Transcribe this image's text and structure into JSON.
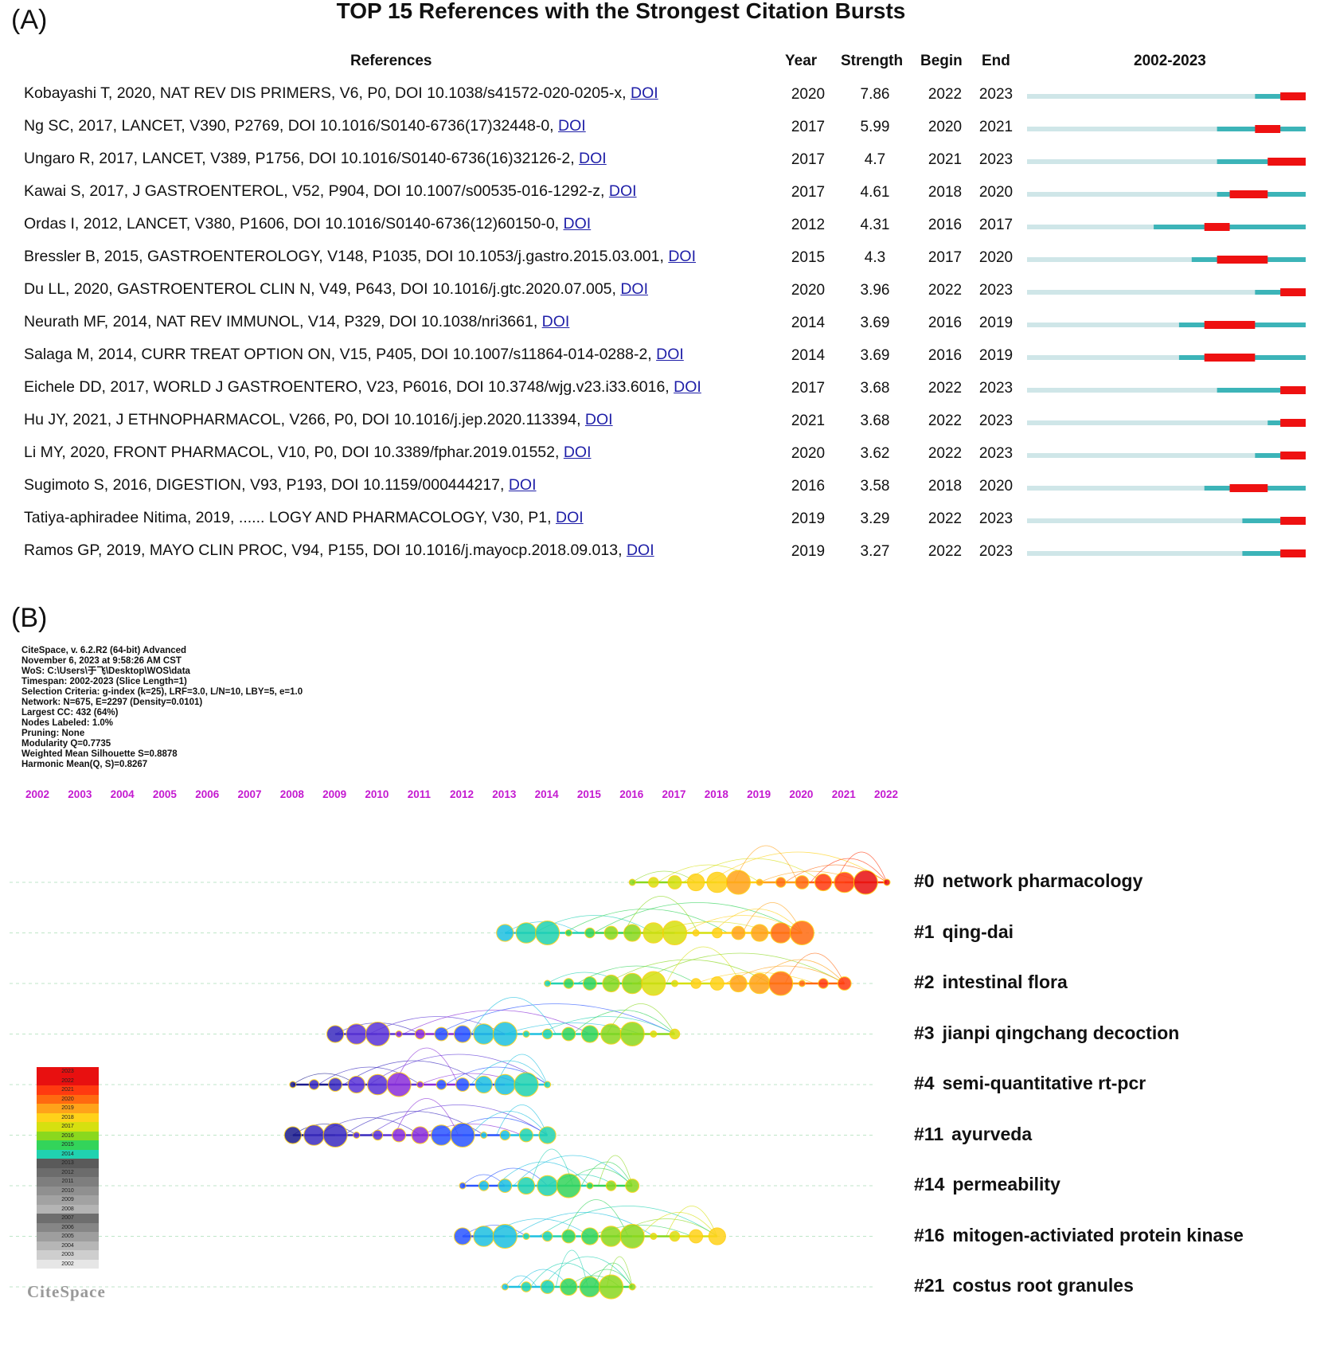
{
  "panel_a_label": "(A)",
  "panel_b_label": "(B)",
  "chart_data": [
    {
      "type": "table",
      "title": "TOP 15 References with the Strongest Citation Bursts",
      "columns": [
        "References",
        "Year",
        "Strength",
        "Begin",
        "End",
        "2002-2023"
      ],
      "timeline_range": [
        2002,
        2023
      ],
      "rows": [
        {
          "ref": "Kobayashi T, 2020, NAT REV DIS PRIMERS, V6, P0, DOI 10.1038/s41572-020-0205-x,",
          "doi": "DOI",
          "year": "2020",
          "strength": "7.86",
          "begin": "2022",
          "end": "2023"
        },
        {
          "ref": "Ng SC, 2017, LANCET, V390, P2769, DOI 10.1016/S0140-6736(17)32448-0,",
          "doi": "DOI",
          "year": "2017",
          "strength": "5.99",
          "begin": "2020",
          "end": "2021"
        },
        {
          "ref": "Ungaro R, 2017, LANCET, V389, P1756, DOI 10.1016/S0140-6736(16)32126-2,",
          "doi": "DOI",
          "year": "2017",
          "strength": "4.7",
          "begin": "2021",
          "end": "2023"
        },
        {
          "ref": "Kawai S, 2017, J GASTROENTEROL, V52, P904, DOI 10.1007/s00535-016-1292-z,",
          "doi": "DOI",
          "year": "2017",
          "strength": "4.61",
          "begin": "2018",
          "end": "2020"
        },
        {
          "ref": "Ordas I, 2012, LANCET, V380, P1606, DOI 10.1016/S0140-6736(12)60150-0,",
          "doi": "DOI",
          "year": "2012",
          "strength": "4.31",
          "begin": "2016",
          "end": "2017"
        },
        {
          "ref": "Bressler B, 2015, GASTROENTEROLOGY, V148, P1035, DOI 10.1053/j.gastro.2015.03.001,",
          "doi": "DOI",
          "year": "2015",
          "strength": "4.3",
          "begin": "2017",
          "end": "2020"
        },
        {
          "ref": "Du LL, 2020, GASTROENTEROL CLIN N, V49, P643, DOI 10.1016/j.gtc.2020.07.005,",
          "doi": "DOI",
          "year": "2020",
          "strength": "3.96",
          "begin": "2022",
          "end": "2023"
        },
        {
          "ref": "Neurath MF, 2014, NAT REV IMMUNOL, V14, P329, DOI 10.1038/nri3661,",
          "doi": "DOI",
          "year": "2014",
          "strength": "3.69",
          "begin": "2016",
          "end": "2019"
        },
        {
          "ref": "Salaga M, 2014, CURR TREAT OPTION ON, V15, P405, DOI 10.1007/s11864-014-0288-2,",
          "doi": "DOI",
          "year": "2014",
          "strength": "3.69",
          "begin": "2016",
          "end": "2019"
        },
        {
          "ref": "Eichele DD, 2017, WORLD J GASTROENTERO, V23, P6016, DOI 10.3748/wjg.v23.i33.6016,",
          "doi": "DOI",
          "year": "2017",
          "strength": "3.68",
          "begin": "2022",
          "end": "2023"
        },
        {
          "ref": "Hu JY, 2021, J ETHNOPHARMACOL, V266, P0, DOI 10.1016/j.jep.2020.113394,",
          "doi": "DOI",
          "year": "2021",
          "strength": "3.68",
          "begin": "2022",
          "end": "2023"
        },
        {
          "ref": "Li MY, 2020, FRONT PHARMACOL, V10, P0, DOI 10.3389/fphar.2019.01552,",
          "doi": "DOI",
          "year": "2020",
          "strength": "3.62",
          "begin": "2022",
          "end": "2023"
        },
        {
          "ref": "Sugimoto S, 2016, DIGESTION, V93, P193, DOI 10.1159/000444217,",
          "doi": "DOI",
          "year": "2016",
          "strength": "3.58",
          "begin": "2018",
          "end": "2020"
        },
        {
          "ref": "Tatiya-aphiradee Nitima, 2019, ...... LOGY AND PHARMACOLOGY, V30, P1,",
          "doi": "DOI",
          "year": "2019",
          "strength": "3.29",
          "begin": "2022",
          "end": "2023"
        },
        {
          "ref": "Ramos GP, 2019, MAYO CLIN PROC, V94, P155, DOI 10.1016/j.mayocp.2018.09.013,",
          "doi": "DOI",
          "year": "2019",
          "strength": "3.27",
          "begin": "2022",
          "end": "2023"
        }
      ]
    },
    {
      "type": "timeline",
      "meta_lines": [
        "CiteSpace, v. 6.2.R2 (64-bit) Advanced",
        "November 6, 2023 at 9:58:26 AM CST",
        "WoS: C:\\Users\\于飞\\Desktop\\WOS\\data",
        "Timespan: 2002-2023 (Slice Length=1)",
        "Selection Criteria: g-index (k=25), LRF=3.0, L/N=10, LBY=5, e=1.0",
        "Network: N=675, E=2297 (Density=0.0101)",
        "Largest CC: 432 (64%)",
        "Nodes Labeled: 1.0%",
        "Pruning: None",
        "Modularity Q=0.7735",
        "Weighted Mean Silhouette S=0.8878",
        "Harmonic Mean(Q, S)=0.8267"
      ],
      "years": [
        "2002",
        "2003",
        "2004",
        "2005",
        "2006",
        "2007",
        "2008",
        "2009",
        "2010",
        "2011",
        "2012",
        "2013",
        "2014",
        "2015",
        "2016",
        "2017",
        "2018",
        "2019",
        "2020",
        "2021",
        "2022"
      ],
      "clusters": [
        {
          "id": "#0",
          "label": "network pharmacology",
          "span": [
            2016,
            2022
          ]
        },
        {
          "id": "#1",
          "label": "qing-dai",
          "span": [
            2013,
            2020
          ]
        },
        {
          "id": "#2",
          "label": "intestinal flora",
          "span": [
            2014,
            2021
          ]
        },
        {
          "id": "#3",
          "label": "jianpi qingchang decoction",
          "span": [
            2009,
            2017
          ]
        },
        {
          "id": "#4",
          "label": "semi-quantitative rt-pcr",
          "span": [
            2008,
            2014
          ]
        },
        {
          "id": "#11",
          "label": "ayurveda",
          "span": [
            2008,
            2014
          ]
        },
        {
          "id": "#14",
          "label": "permeability",
          "span": [
            2012,
            2016
          ]
        },
        {
          "id": "#16",
          "label": "mitogen-activiated protein kinase",
          "span": [
            2012,
            2018
          ]
        },
        {
          "id": "#21",
          "label": "costus root granules",
          "span": [
            2013,
            2016
          ]
        }
      ],
      "legend_years": [
        "2023",
        "2022",
        "2021",
        "2020",
        "2019",
        "2018",
        "2017",
        "2016",
        "2015",
        "2014",
        "2013",
        "2012",
        "2011",
        "2010",
        "2009",
        "2008",
        "2007",
        "2006",
        "2005",
        "2004",
        "2003",
        "2002"
      ],
      "logo": "CiteSpace"
    }
  ],
  "colors": {
    "burst_red": "#ee1111",
    "burst_active": "#3cb4b8",
    "burst_inactive": "#cfe6e8",
    "doi_link": "#1f1fa8",
    "year_axis": "#c41ad0"
  }
}
